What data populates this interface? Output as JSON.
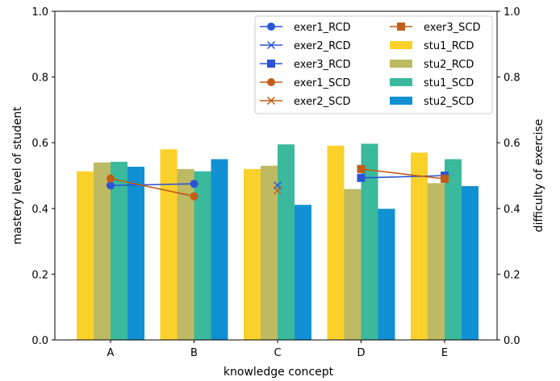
{
  "chart_data": {
    "type": "bar",
    "xlabel": "knowledge concept",
    "ylabel": "mastery level of student",
    "y2label": "difficulty of exercise",
    "categories": [
      "A",
      "B",
      "C",
      "D",
      "E"
    ],
    "ylim": [
      0,
      1.0
    ],
    "y2lim": [
      0,
      1.0
    ],
    "yticks": [
      "0.0",
      "0.2",
      "0.4",
      "0.6",
      "0.8",
      "1.0"
    ],
    "y2ticks": [
      "0.0",
      "0.2",
      "0.4",
      "0.6",
      "0.8",
      "1.0"
    ],
    "grid": false,
    "legend_position": "top-right",
    "bar_series": [
      {
        "name": "stu1_RCD",
        "color": "#f9d12a",
        "values": [
          0.513,
          0.58,
          0.52,
          0.591,
          0.57
        ]
      },
      {
        "name": "stu2_RCD",
        "color": "#bdba63",
        "values": [
          0.54,
          0.52,
          0.53,
          0.459,
          0.477
        ]
      },
      {
        "name": "stu1_SCD",
        "color": "#3ab99c",
        "values": [
          0.542,
          0.513,
          0.595,
          0.597,
          0.55
        ]
      },
      {
        "name": "stu2_SCD",
        "color": "#1191d3",
        "values": [
          0.527,
          0.55,
          0.411,
          0.399,
          0.468
        ]
      }
    ],
    "line_series": [
      {
        "name": "exer1_RCD",
        "color": "#2c53d6",
        "marker": "circle",
        "points": [
          {
            "x": "A",
            "y": 0.47
          },
          {
            "x": "B",
            "y": 0.475
          }
        ]
      },
      {
        "name": "exer2_RCD",
        "color": "#2c53d6",
        "marker": "x",
        "points": [
          {
            "x": "C",
            "y": 0.47
          }
        ]
      },
      {
        "name": "exer3_RCD",
        "color": "#2c53d6",
        "marker": "square",
        "points": [
          {
            "x": "D",
            "y": 0.493
          },
          {
            "x": "E",
            "y": 0.5
          }
        ]
      },
      {
        "name": "exer1_SCD",
        "color": "#c25c16",
        "marker": "circle",
        "points": [
          {
            "x": "A",
            "y": 0.491
          },
          {
            "x": "B",
            "y": 0.437
          }
        ]
      },
      {
        "name": "exer2_SCD",
        "color": "#c25c16",
        "marker": "x",
        "points": [
          {
            "x": "C",
            "y": 0.455
          }
        ]
      },
      {
        "name": "exer3_SCD",
        "color": "#c25c16",
        "marker": "square",
        "points": [
          {
            "x": "D",
            "y": 0.52
          },
          {
            "x": "E",
            "y": 0.49
          }
        ]
      }
    ],
    "legend_order": [
      "exer1_RCD",
      "exer2_RCD",
      "exer3_RCD",
      "exer1_SCD",
      "exer2_SCD",
      "exer3_SCD",
      "stu1_RCD",
      "stu2_RCD",
      "stu1_SCD",
      "stu2_SCD"
    ]
  }
}
